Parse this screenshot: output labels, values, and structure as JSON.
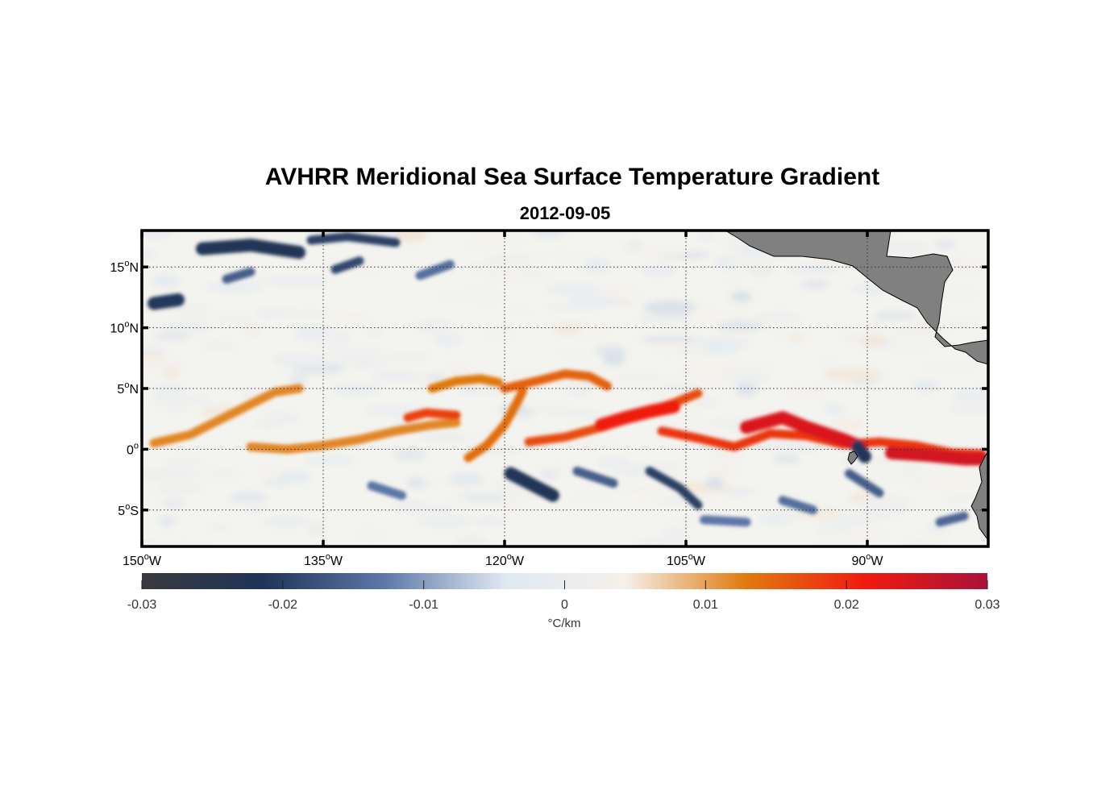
{
  "title": "AVHRR Meridional Sea Surface Temperature Gradient",
  "subtitle": "2012-09-05",
  "chart_data": {
    "type": "heatmap",
    "variable": "Meridional SST gradient",
    "units": "°C/km",
    "lon_range": [
      -150,
      -80
    ],
    "lat_range": [
      -8,
      18
    ],
    "x_ticks": [
      {
        "value": -150,
        "deg": "150",
        "suffix": "W"
      },
      {
        "value": -135,
        "deg": "135",
        "suffix": "W"
      },
      {
        "value": -120,
        "deg": "120",
        "suffix": "W"
      },
      {
        "value": -105,
        "deg": "105",
        "suffix": "W"
      },
      {
        "value": -90,
        "deg": "90",
        "suffix": "W"
      }
    ],
    "y_ticks": [
      {
        "value": 15,
        "deg": "15",
        "suffix": "N"
      },
      {
        "value": 10,
        "deg": "10",
        "suffix": "N"
      },
      {
        "value": 5,
        "deg": "5",
        "suffix": "N"
      },
      {
        "value": 0,
        "deg": "0",
        "suffix": ""
      },
      {
        "value": -5,
        "deg": "5",
        "suffix": "S"
      }
    ],
    "colorbar": {
      "range": [
        -0.03,
        0.03
      ],
      "ticks": [
        "-0.03",
        "-0.02",
        "-0.01",
        "0",
        "0.01",
        "0.02",
        "0.03"
      ],
      "colors": [
        "#3a3a3e",
        "#1f3458",
        "#5c77a8",
        "#dfe8f2",
        "#f5f0ea",
        "#e07a10",
        "#f01a10",
        "#a8123a"
      ]
    },
    "grid": "dotted",
    "colors": {
      "land": "#808080",
      "frame": "#000000"
    },
    "features": [
      {
        "name": "front-a",
        "lon": [
          -149,
          -146,
          -142,
          -139,
          -137
        ],
        "lat": [
          0.5,
          1.2,
          3.2,
          4.7,
          5.0
        ],
        "value": 0.012
      },
      {
        "name": "front-b",
        "lon": [
          -141,
          -138,
          -135,
          -132,
          -129,
          -126,
          -124
        ],
        "lat": [
          0.2,
          0.0,
          0.3,
          0.8,
          1.5,
          2.0,
          2.2
        ],
        "value": 0.012
      },
      {
        "name": "front-c",
        "lon": [
          -128,
          -126.5,
          -124
        ],
        "lat": [
          2.6,
          3.0,
          2.8
        ],
        "value": 0.018
      },
      {
        "name": "front-d",
        "lon": [
          -126,
          -124,
          -122,
          -120.5
        ],
        "lat": [
          5.0,
          5.6,
          5.8,
          5.5
        ],
        "value": 0.013
      },
      {
        "name": "front-e",
        "lon": [
          -123,
          -121.5,
          -120,
          -119,
          -118.5
        ],
        "lat": [
          -0.7,
          0.3,
          2.0,
          3.8,
          4.8
        ],
        "value": 0.014
      },
      {
        "name": "front-f",
        "lon": [
          -120,
          -117,
          -115,
          -113,
          -111.5
        ],
        "lat": [
          5.0,
          5.7,
          6.2,
          6.0,
          5.2
        ],
        "value": 0.015
      },
      {
        "name": "front-g",
        "lon": [
          -118,
          -115,
          -112,
          -109,
          -106,
          -104
        ],
        "lat": [
          0.6,
          1.0,
          1.8,
          2.8,
          3.8,
          4.6
        ],
        "value": 0.017
      },
      {
        "name": "front-h",
        "lon": [
          -112,
          -110,
          -108,
          -106
        ],
        "lat": [
          2.0,
          2.6,
          3.1,
          3.5
        ],
        "value": 0.021
      },
      {
        "name": "front-i",
        "lon": [
          -107,
          -104,
          -101,
          -98,
          -95,
          -92,
          -89,
          -86,
          -83,
          -80.5
        ],
        "lat": [
          1.5,
          0.9,
          0.2,
          1.3,
          1.1,
          0.4,
          0.6,
          0.3,
          -0.3,
          -0.4
        ],
        "value": 0.019
      },
      {
        "name": "front-j",
        "lon": [
          -100,
          -97,
          -95,
          -92,
          -90.5
        ],
        "lat": [
          1.8,
          2.6,
          1.8,
          0.8,
          0.2
        ],
        "value": 0.024
      },
      {
        "name": "front-k",
        "lon": [
          -88,
          -85,
          -82,
          -80.5
        ],
        "lat": [
          -0.3,
          -0.5,
          -0.8,
          -0.8
        ],
        "value": 0.025
      },
      {
        "name": "patch-1",
        "lon": [
          -145,
          -141,
          -137
        ],
        "lat": [
          16.5,
          16.8,
          16.2
        ],
        "value": -0.022
      },
      {
        "name": "patch-2",
        "lon": [
          -136,
          -133,
          -129
        ],
        "lat": [
          17.2,
          17.5,
          17.0
        ],
        "value": -0.02
      },
      {
        "name": "patch-3",
        "lon": [
          -134,
          -132
        ],
        "lat": [
          14.8,
          15.5
        ],
        "value": -0.019
      },
      {
        "name": "patch-4",
        "lon": [
          -149,
          -147
        ],
        "lat": [
          12.0,
          12.3
        ],
        "value": -0.021
      },
      {
        "name": "patch-5",
        "lon": [
          -143,
          -141
        ],
        "lat": [
          14.0,
          14.6
        ],
        "value": -0.016
      },
      {
        "name": "patch-6",
        "lon": [
          -127,
          -124.5
        ],
        "lat": [
          14.3,
          15.2
        ],
        "value": -0.014
      },
      {
        "name": "patch-7",
        "lon": [
          -119.5,
          -116
        ],
        "lat": [
          -2.0,
          -3.8
        ],
        "value": -0.022
      },
      {
        "name": "patch-8",
        "lon": [
          -114,
          -111
        ],
        "lat": [
          -1.8,
          -2.8
        ],
        "value": -0.016
      },
      {
        "name": "patch-9",
        "lon": [
          -108,
          -105.5,
          -104
        ],
        "lat": [
          -1.8,
          -3.2,
          -4.6
        ],
        "value": -0.02
      },
      {
        "name": "patch-10",
        "lon": [
          -131,
          -128.5
        ],
        "lat": [
          -3.0,
          -3.8
        ],
        "value": -0.013
      },
      {
        "name": "patch-11",
        "lon": [
          -97,
          -94.5
        ],
        "lat": [
          -4.2,
          -5.0
        ],
        "value": -0.014
      },
      {
        "name": "patch-12",
        "lon": [
          -91.5,
          -89
        ],
        "lat": [
          -2.0,
          -3.6
        ],
        "value": -0.016
      },
      {
        "name": "patch-13",
        "lon": [
          -90.8,
          -90.2
        ],
        "lat": [
          0.2,
          -0.6
        ],
        "value": -0.022
      },
      {
        "name": "patch-14",
        "lon": [
          -84,
          -82
        ],
        "lat": [
          -6.0,
          -5.5
        ],
        "value": -0.015
      },
      {
        "name": "patch-15",
        "lon": [
          -103.5,
          -100
        ],
        "lat": [
          -5.8,
          -6.0
        ],
        "value": -0.013
      }
    ]
  }
}
